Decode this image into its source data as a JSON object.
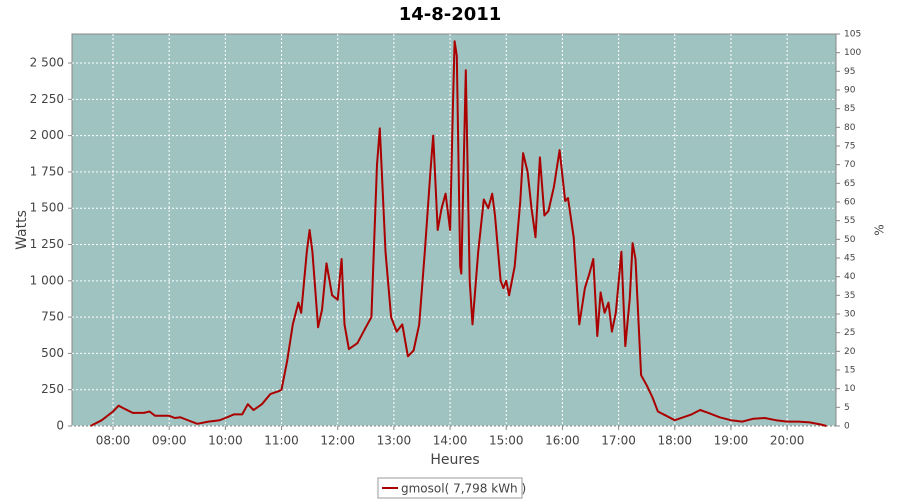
{
  "chart_data": {
    "type": "line",
    "title": "14-8-2011",
    "x_label": "Heures",
    "y_label": "Watts",
    "y2_label": "%",
    "grid": true,
    "background": "#9fc3c0",
    "xlim": [
      7.27,
      20.87
    ],
    "xticks": [
      {
        "value": 8,
        "label": "08:00"
      },
      {
        "value": 9,
        "label": "09:00"
      },
      {
        "value": 10,
        "label": "10:00"
      },
      {
        "value": 11,
        "label": "11:00"
      },
      {
        "value": 12,
        "label": "12:00"
      },
      {
        "value": 13,
        "label": "13:00"
      },
      {
        "value": 14,
        "label": "14:00"
      },
      {
        "value": 15,
        "label": "15:00"
      },
      {
        "value": 16,
        "label": "16:00"
      },
      {
        "value": 17,
        "label": "17:00"
      },
      {
        "value": 18,
        "label": "18:00"
      },
      {
        "value": 19,
        "label": "19:00"
      },
      {
        "value": 20,
        "label": "20:00"
      }
    ],
    "ylim": [
      0,
      2700
    ],
    "yticks": [
      0,
      250,
      500,
      750,
      {
        "value": 1000,
        "label": "1 000"
      },
      {
        "value": 1250,
        "label": "1 250"
      },
      {
        "value": 1500,
        "label": "1 500"
      },
      {
        "value": 1750,
        "label": "1 750"
      },
      {
        "value": 2000,
        "label": "2 000"
      },
      {
        "value": 2250,
        "label": "2 250"
      },
      {
        "value": 2500,
        "label": "2 500"
      }
    ],
    "y2lim": [
      0,
      105
    ],
    "y2ticks": [
      0,
      5,
      10,
      15,
      20,
      25,
      30,
      35,
      40,
      45,
      50,
      55,
      60,
      65,
      70,
      75,
      80,
      85,
      90,
      95,
      100,
      105
    ],
    "x": [
      7.6,
      7.8,
      8.0,
      8.1,
      8.2,
      8.35,
      8.55,
      8.65,
      8.75,
      9.0,
      9.1,
      9.2,
      9.3,
      9.5,
      9.7,
      9.9,
      10.0,
      10.15,
      10.3,
      10.4,
      10.5,
      10.65,
      10.8,
      10.95,
      11.0,
      11.1,
      11.2,
      11.3,
      11.35,
      11.45,
      11.5,
      11.55,
      11.65,
      11.72,
      11.8,
      11.9,
      12.0,
      12.07,
      12.12,
      12.2,
      12.35,
      12.5,
      12.6,
      12.7,
      12.75,
      12.85,
      12.95,
      13.05,
      13.15,
      13.25,
      13.35,
      13.45,
      13.55,
      13.65,
      13.7,
      13.78,
      13.85,
      13.92,
      14.0,
      14.05,
      14.08,
      14.12,
      14.18,
      14.2,
      14.28,
      14.35,
      14.4,
      14.5,
      14.6,
      14.68,
      14.75,
      14.8,
      14.9,
      14.95,
      15.0,
      15.05,
      15.15,
      15.25,
      15.3,
      15.38,
      15.45,
      15.52,
      15.6,
      15.68,
      15.75,
      15.85,
      15.95,
      16.05,
      16.1,
      16.2,
      16.3,
      16.4,
      16.48,
      16.55,
      16.62,
      16.68,
      16.75,
      16.82,
      16.88,
      16.95,
      17.05,
      17.12,
      17.2,
      17.25,
      17.3,
      17.4,
      17.5,
      17.6,
      17.7,
      17.85,
      18.0,
      18.15,
      18.3,
      18.45,
      18.6,
      18.8,
      19.0,
      19.2,
      19.4,
      19.6,
      19.8,
      20.0,
      20.2,
      20.4,
      20.6,
      20.7
    ],
    "series": [
      {
        "name": "gmosol( 7,798 kWh )",
        "color": "#aa0000",
        "values": [
          0,
          40,
          100,
          140,
          120,
          90,
          90,
          100,
          70,
          70,
          55,
          60,
          45,
          15,
          30,
          40,
          55,
          80,
          80,
          150,
          110,
          150,
          220,
          240,
          250,
          450,
          700,
          850,
          780,
          1200,
          1350,
          1200,
          680,
          800,
          1120,
          900,
          870,
          1150,
          700,
          530,
          570,
          680,
          750,
          1800,
          2050,
          1200,
          750,
          650,
          700,
          480,
          520,
          700,
          1200,
          1750,
          2000,
          1350,
          1500,
          1600,
          1350,
          2200,
          2650,
          2550,
          1100,
          1050,
          2450,
          1000,
          700,
          1200,
          1560,
          1500,
          1600,
          1450,
          1000,
          950,
          1000,
          900,
          1100,
          1550,
          1880,
          1750,
          1500,
          1300,
          1850,
          1450,
          1480,
          1650,
          1900,
          1550,
          1570,
          1300,
          700,
          950,
          1050,
          1150,
          620,
          920,
          780,
          850,
          650,
          780,
          1200,
          550,
          880,
          1260,
          1150,
          350,
          280,
          200,
          100,
          70,
          40,
          60,
          80,
          110,
          90,
          60,
          40,
          30,
          50,
          55,
          40,
          30,
          30,
          25,
          10,
          0
        ]
      }
    ]
  }
}
